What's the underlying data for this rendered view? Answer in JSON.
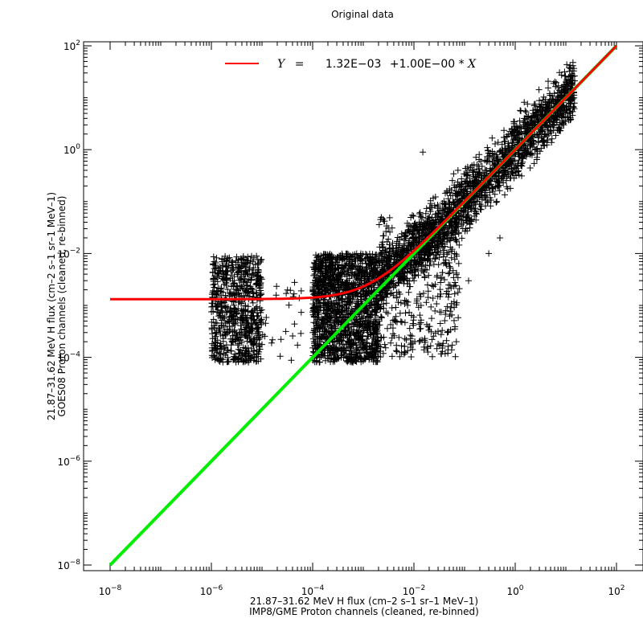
{
  "chart_data": {
    "type": "scatter",
    "title": "Original data",
    "xlabel_line1": "21.87–31.62 MeV H flux (cm–2 s–1 sr–1 MeV–1)",
    "xlabel_line2": "IMP8/GME Proton channels (cleaned, re-binned)",
    "ylabel_line1": "21.87–31.62 MeV H flux (cm–2 s–1 sr–1 MeV–1)",
    "ylabel_line2": "GOES08 Proton channels (cleaned, re-binned)",
    "x_scale": "log",
    "y_scale": "log",
    "xlim": [
      1e-08,
      100
    ],
    "ylim": [
      1e-08,
      100
    ],
    "x_ticks": [
      {
        "value": 1e-08,
        "base": "10",
        "exp": "−8"
      },
      {
        "value": 1e-06,
        "base": "10",
        "exp": "−6"
      },
      {
        "value": 0.0001,
        "base": "10",
        "exp": "−4"
      },
      {
        "value": 0.01,
        "base": "10",
        "exp": "−2"
      },
      {
        "value": 1,
        "base": "10",
        "exp": "0"
      },
      {
        "value": 100,
        "base": "10",
        "exp": "2"
      }
    ],
    "y_ticks": [
      {
        "value": 1e-08,
        "base": "10",
        "exp": "−8"
      },
      {
        "value": 1e-06,
        "base": "10",
        "exp": "−6"
      },
      {
        "value": 0.0001,
        "base": "10",
        "exp": "−4"
      },
      {
        "value": 0.01,
        "base": "10",
        "exp": "−2"
      },
      {
        "value": 1,
        "base": "10",
        "exp": "0"
      },
      {
        "value": 100,
        "base": "10",
        "exp": "2"
      }
    ],
    "grid": false,
    "legend_position": "top-center",
    "legend": {
      "y_var": "Y",
      "equals": "=",
      "intercept": "1.32E−03",
      "slope_text": "+1.00E−00",
      "times": "*",
      "x_var": "X"
    },
    "scatter_marker": "+",
    "scatter_color": "#000000",
    "clusters": [
      {
        "x_range": [
          1e-06,
          1e-05
        ],
        "y_range": [
          8e-05,
          0.009
        ],
        "count": 700
      },
      {
        "x_range": [
          1e-05,
          6e-05
        ],
        "y_range": [
          8e-05,
          0.004
        ],
        "count": 25
      },
      {
        "x_range": [
          0.0001,
          0.002
        ],
        "y_range": [
          8e-05,
          0.01
        ],
        "count": 1500
      },
      {
        "x_range": [
          0.002,
          0.08
        ],
        "y_range": [
          0.0001,
          0.05
        ],
        "count": 400
      }
    ],
    "diagonal_band": {
      "x_range": [
        0.002,
        15
      ],
      "intercept": 0.00132,
      "count": 2000
    },
    "outliers": [
      {
        "x": 0.015,
        "y": 0.9
      },
      {
        "x": 0.5,
        "y": 0.02
      },
      {
        "x": 0.12,
        "y": 0.003
      },
      {
        "x": 3e-05,
        "y": 0.0017
      },
      {
        "x": 0.3,
        "y": 0.01
      }
    ],
    "series": [
      {
        "name": "fit",
        "color": "#ff0000",
        "style": "line",
        "intercept": 0.00132,
        "slope": 1.0,
        "x": [
          1e-08,
          100
        ]
      },
      {
        "name": "one-to-one",
        "color": "#00ee00",
        "style": "line",
        "x": [
          1e-08,
          100
        ],
        "y": [
          1e-08,
          100
        ]
      }
    ],
    "colors": {
      "axes": "#000000",
      "fit_line": "#ff0000",
      "identity_line": "#00ee00"
    }
  }
}
